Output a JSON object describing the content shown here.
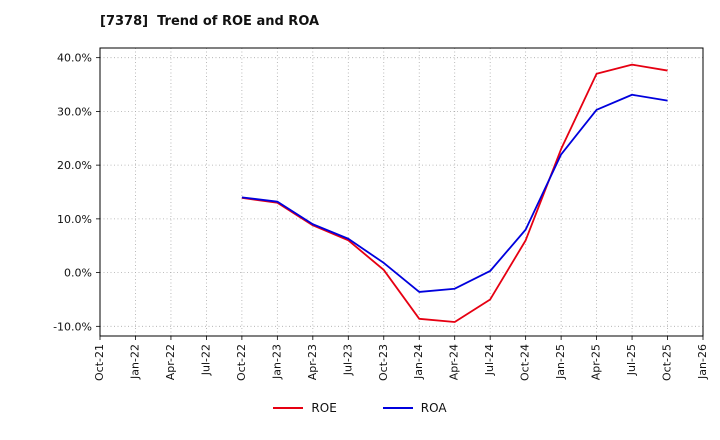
{
  "title": "[7378]  Trend of ROE and ROA",
  "legend": {
    "roe": "ROE",
    "roa": "ROA"
  },
  "colors": {
    "roe": "#e60012",
    "roa": "#0000dd",
    "grid": "#aaaaaa",
    "axis": "#000000",
    "text": "#111111",
    "background": "#ffffff"
  },
  "chart_data": {
    "type": "line",
    "title": "[7378]  Trend of ROE and ROA",
    "categories": [
      "Oct-21",
      "Jan-22",
      "Apr-22",
      "Jul-22",
      "Oct-22",
      "Jan-23",
      "Apr-23",
      "Jul-23",
      "Oct-23",
      "Jan-24",
      "Apr-24",
      "Jul-24",
      "Oct-24",
      "Jan-25",
      "Apr-25",
      "Jul-25",
      "Oct-25",
      "Jan-26"
    ],
    "series": [
      {
        "name": "ROE",
        "color": "#e60012",
        "values": [
          null,
          null,
          null,
          null,
          13.9,
          13.0,
          8.8,
          6.0,
          0.5,
          -8.6,
          -9.2,
          -5.0,
          6.0,
          23.0,
          37.0,
          38.7,
          37.6,
          null
        ]
      },
      {
        "name": "ROA",
        "color": "#0000dd",
        "values": [
          null,
          null,
          null,
          null,
          14.0,
          13.2,
          9.0,
          6.3,
          1.8,
          -3.6,
          -3.0,
          0.3,
          8.0,
          22.0,
          30.3,
          33.1,
          32.0,
          null
        ]
      }
    ],
    "ylim": [
      -10,
      40
    ],
    "yticks": [
      -10,
      0,
      10,
      20,
      30,
      40
    ],
    "ytick_labels": [
      "-10.0%",
      "0.0%",
      "10.0%",
      "20.0%",
      "30.0%",
      "40.0%"
    ],
    "grid": true,
    "grid_style": "dotted",
    "legend_position": "bottom",
    "x_label_rotation": 90
  }
}
